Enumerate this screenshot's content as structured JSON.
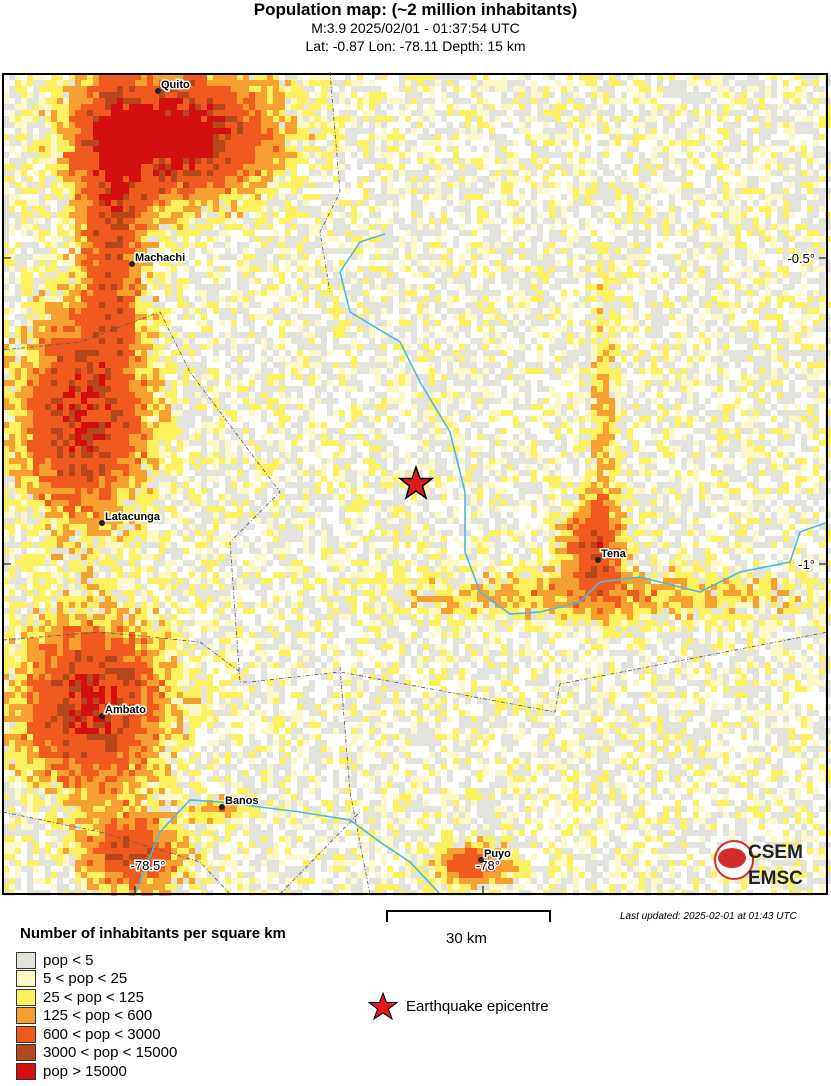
{
  "header": {
    "title": "Population map: (~2 million inhabitants)",
    "line1": "M:3.9 2025/02/01 - 01:37:54 UTC",
    "line2": "Lat: -0.87 Lon: -78.11 Depth: 15 km"
  },
  "map": {
    "cities": [
      "Quito",
      "Machachi",
      "Latacunga",
      "Ambato",
      "Banos",
      "Tena",
      "Puyo"
    ],
    "lat_ticks": [
      "-0.5°",
      "-1°"
    ],
    "lon_ticks": [
      "-78.5°",
      "-78°"
    ],
    "epicentre_icon": "red-star-icon",
    "logo": "CSEM EMSC"
  },
  "scale": {
    "label": "30 km"
  },
  "updated": "Last updated: 2025-02-01 at 01:43 UTC",
  "legend": {
    "title": "Number of inhabitants per square km",
    "items": [
      {
        "label": "pop < 5",
        "color": "#e3e3de"
      },
      {
        "label": "5 < pop < 25",
        "color": "#fdf8c8"
      },
      {
        "label": "25 < pop < 125",
        "color": "#fdf25e"
      },
      {
        "label": "125 < pop < 600",
        "color": "#f7a032"
      },
      {
        "label": "600 < pop < 3000",
        "color": "#f05a1e"
      },
      {
        "label": "3000 < pop < 15000",
        "color": "#b6471a"
      },
      {
        "label": "pop > 15000",
        "color": "#d40f0f"
      }
    ],
    "epicentre_label": "Earthquake epicentre"
  }
}
